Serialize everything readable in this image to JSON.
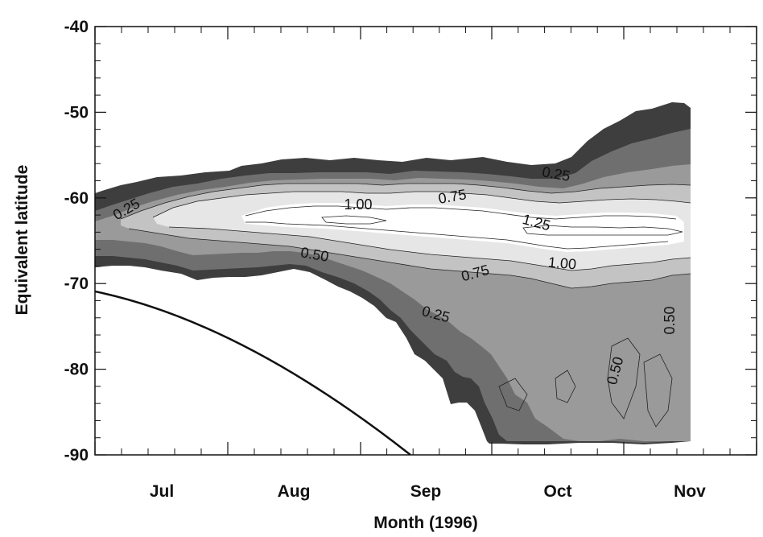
{
  "chart_data": {
    "type": "heatmap",
    "title": "",
    "xlabel": "Month (1996)",
    "ylabel": "Equivalent latitude",
    "x_tick_labels": [
      "Jul",
      "Aug",
      "Sep",
      "Oct",
      "Nov"
    ],
    "y_ticks": [
      -40,
      -50,
      -60,
      -70,
      -80,
      -90
    ],
    "y_tick_labels": [
      "-40",
      "-50",
      "-60",
      "-70",
      "-80",
      "-90"
    ],
    "ylim": [
      -90,
      -40
    ],
    "grid": false,
    "legend": "none",
    "contour_levels": [
      0.25,
      0.5,
      0.75,
      1.0,
      1.25
    ],
    "contour_labels": [
      {
        "text": "0.25",
        "month": "Jun",
        "lat": -62.5
      },
      {
        "text": "1.00",
        "month": "Aug/Sep",
        "lat": -61.5
      },
      {
        "text": "0.75",
        "month": "Sep",
        "lat": -61.0
      },
      {
        "text": "0.25",
        "month": "Oct",
        "lat": -57.5
      },
      {
        "text": "1.25",
        "month": "Oct",
        "lat": -64.0
      },
      {
        "text": "0.50",
        "month": "Aug",
        "lat": -68.5
      },
      {
        "text": "0.75",
        "month": "Sep",
        "lat": -70.0
      },
      {
        "text": "1.00",
        "month": "Oct",
        "lat": -69.0
      },
      {
        "text": "0.25",
        "month": "Sep",
        "lat": -75.5
      },
      {
        "text": "0.50",
        "month": "Nov",
        "lat": -75.0
      },
      {
        "text": "0.50",
        "month": "Oct",
        "lat": -81.0
      }
    ],
    "boundary_curve": {
      "description_points": [
        {
          "x": "Jun (start)",
          "y": -71
        },
        {
          "x": "Jul",
          "y": -74
        },
        {
          "x": "Aug",
          "y": -80
        },
        {
          "x": "Sep",
          "y": -90
        }
      ]
    },
    "color_scale": [
      "#3e3e3e",
      "#6f6f6f",
      "#9a9a9a",
      "#c3c3c3",
      "#e6e6e6",
      "#ffffff"
    ]
  }
}
